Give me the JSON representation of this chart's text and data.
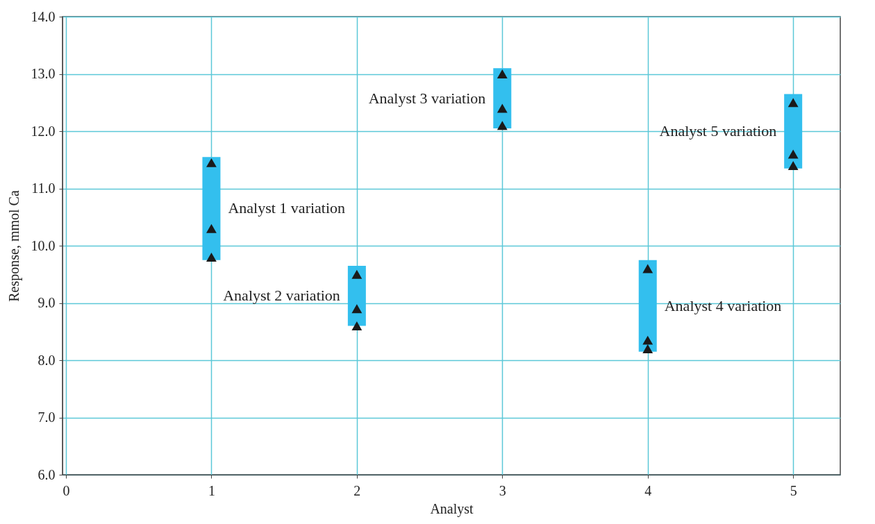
{
  "chart_data": {
    "type": "bar",
    "xlabel": "Analyst",
    "ylabel": "Response, mmol Ca",
    "x": [
      1,
      2,
      3,
      4,
      5
    ],
    "series": [
      {
        "type": "bar",
        "color": "#33bfee",
        "base": [
          9.75,
          8.6,
          12.05,
          8.15,
          11.35
        ],
        "values": [
          1.8,
          1.05,
          1.05,
          1.6,
          1.3
        ]
      },
      {
        "type": "scatter",
        "color": "#1a1a1a",
        "x": [
          1,
          1,
          1,
          2,
          2,
          2,
          3,
          3,
          3,
          4,
          4,
          4,
          5,
          5,
          5
        ],
        "values": [
          11.45,
          10.3,
          9.8,
          9.5,
          8.9,
          8.6,
          13.0,
          12.4,
          12.1,
          9.6,
          8.35,
          8.2,
          12.5,
          11.6,
          11.4
        ]
      }
    ],
    "marker": "triangle",
    "xlim": [
      0,
      5.3
    ],
    "xticks": [
      0,
      1,
      2,
      3,
      4,
      5
    ],
    "ylim": [
      6,
      14
    ],
    "yticks": [
      {
        "value": 6,
        "label": "6.0"
      },
      {
        "value": 7,
        "label": "7.0"
      },
      {
        "value": 8,
        "label": "8.0"
      },
      {
        "value": 9,
        "label": "9.0"
      },
      {
        "value": 10,
        "label": "10.0"
      },
      {
        "value": 11,
        "label": "11.0"
      },
      {
        "value": 12,
        "label": "12.0"
      },
      {
        "value": 13,
        "label": "13.0"
      },
      {
        "value": 14,
        "label": "14.0"
      }
    ],
    "grid": true,
    "annotations": [
      "Analyst 1 variation",
      "Analyst 2 variation",
      "Analyst 3 variation",
      "Analyst 4 variation",
      "Analyst 5 variation"
    ]
  }
}
